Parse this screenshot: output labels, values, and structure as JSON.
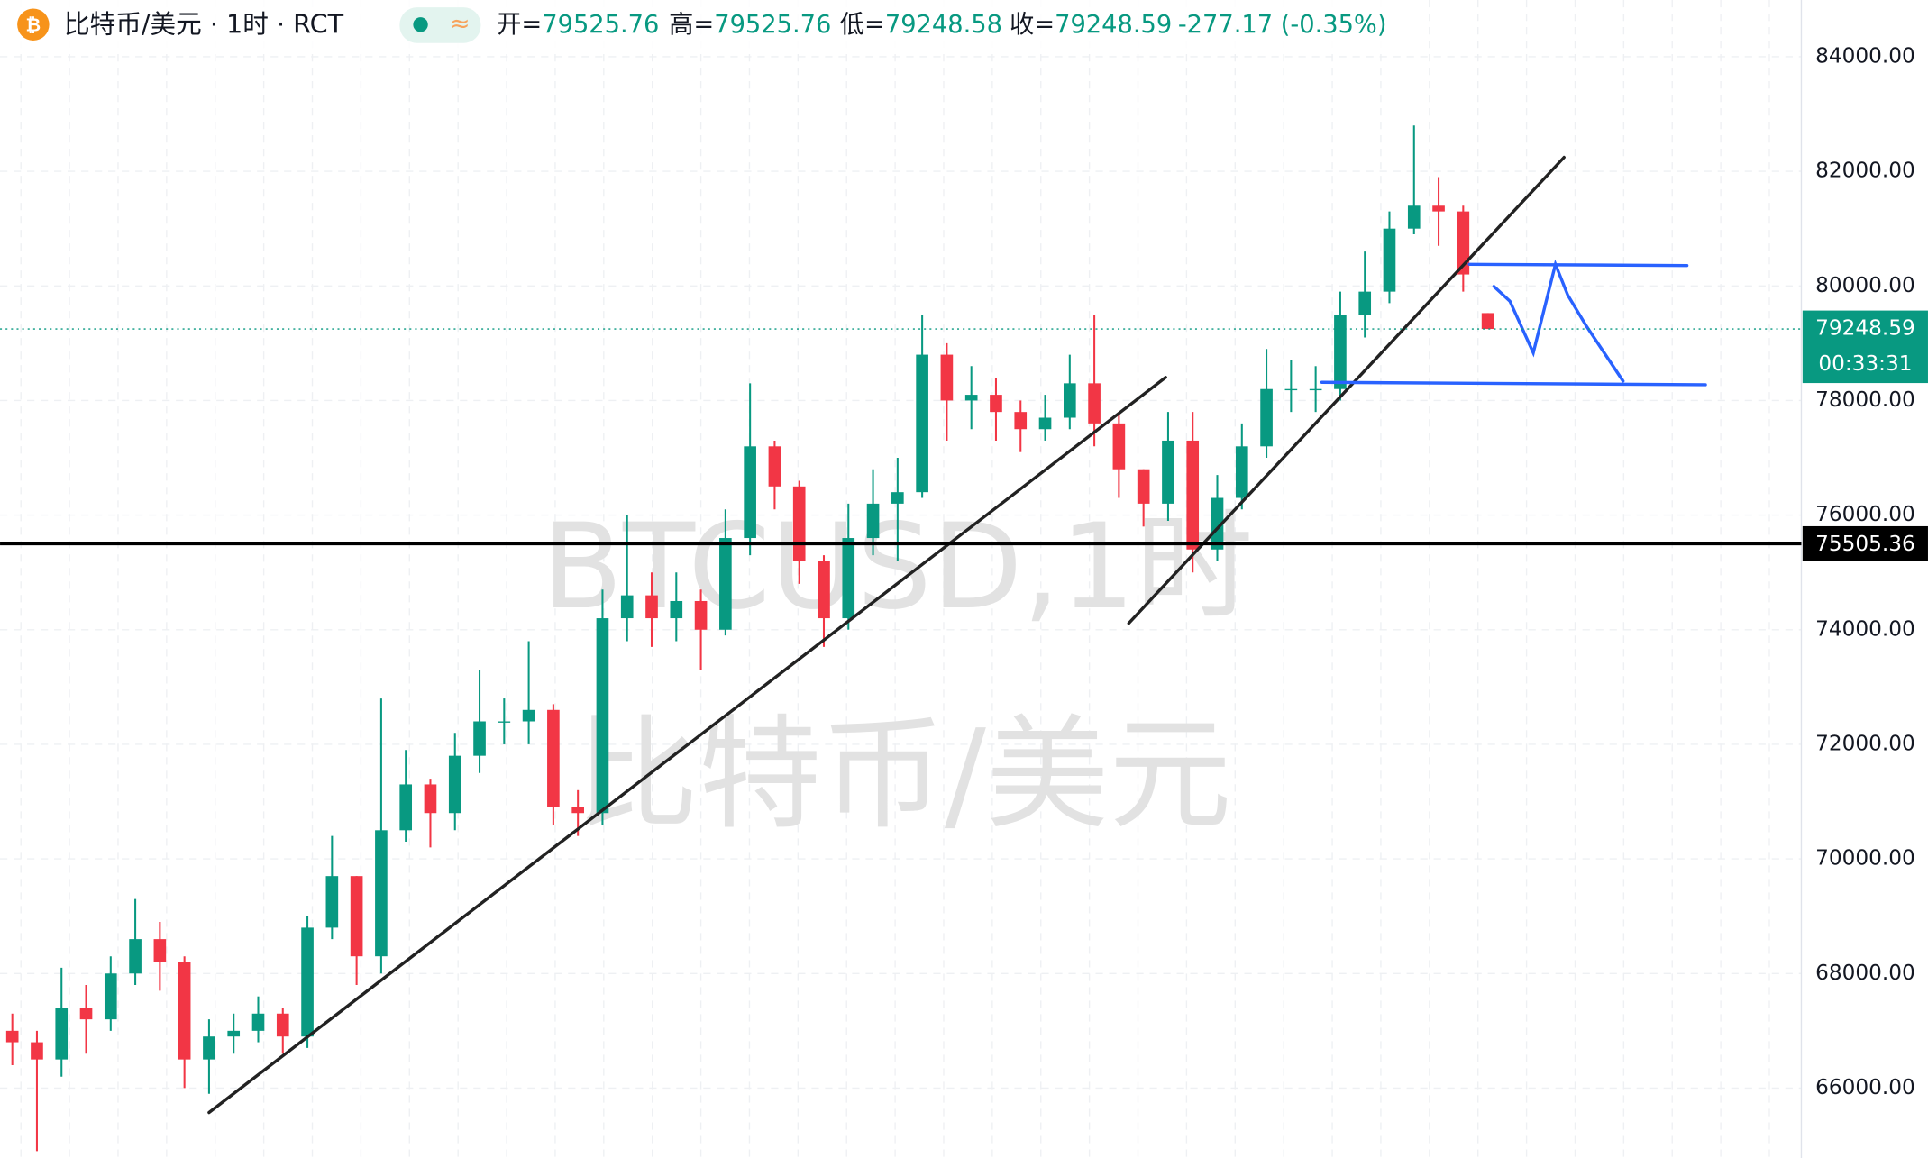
{
  "chart_data": {
    "type": "candlestick",
    "title": "比特币/美元 · 1时 · RCT",
    "ohlc": [
      {
        "label": "开=",
        "value": 79525.76
      },
      {
        "label": "高=",
        "value": 79525.76
      },
      {
        "label": "低=",
        "value": 79248.58
      },
      {
        "label": "收=",
        "value": 79248.59
      }
    ],
    "change": {
      "value": -277.17,
      "label": "-277.17 (-0.35%)"
    },
    "watermark": [
      "BTCUSD,1时",
      "比特币/美元"
    ],
    "up_color": "#089981",
    "down_color": "#f23645",
    "open": [
      67000,
      66800,
      66500,
      67400,
      67200,
      68000,
      68600,
      68200,
      66500,
      66900,
      67000,
      67300,
      66900,
      68800,
      69700,
      68300,
      70500,
      71300,
      70800,
      71800,
      72400,
      72400,
      72600,
      70900,
      70800,
      74200,
      74600,
      74200,
      74500,
      74000,
      75600,
      77200,
      76500,
      75200,
      74200,
      75600,
      76200,
      76400,
      78800,
      78000,
      78100,
      77800,
      77500,
      77700,
      78300,
      77600,
      76800,
      76200,
      77300,
      75400,
      76300,
      77200,
      78200,
      78200,
      78200,
      79500,
      79900,
      81000,
      81400,
      81300,
      79525.76
    ],
    "high": [
      67300,
      67000,
      68100,
      67800,
      68300,
      69300,
      68900,
      68300,
      67200,
      67300,
      67600,
      67400,
      69000,
      70400,
      69700,
      72800,
      71900,
      71400,
      72200,
      73300,
      72800,
      73800,
      72700,
      71200,
      74700,
      76000,
      75000,
      75000,
      74700,
      76100,
      78300,
      77300,
      76600,
      75300,
      76200,
      76800,
      77000,
      79500,
      79000,
      78600,
      78400,
      78000,
      78100,
      78800,
      79500,
      77800,
      76800,
      77800,
      77800,
      76700,
      77600,
      78900,
      78700,
      78600,
      79900,
      80600,
      81300,
      82800,
      81900,
      81400,
      79525.76
    ],
    "low": [
      66400,
      64900,
      66200,
      66600,
      67000,
      67800,
      67700,
      66000,
      65900,
      66600,
      66800,
      66600,
      66700,
      68600,
      67800,
      68000,
      70300,
      70200,
      70500,
      71500,
      72000,
      72000,
      70600,
      70400,
      70600,
      73800,
      73700,
      73800,
      73300,
      73900,
      75300,
      76100,
      74800,
      73700,
      74000,
      75300,
      75200,
      76300,
      77300,
      77500,
      77300,
      77100,
      77300,
      77500,
      77200,
      76300,
      75800,
      75900,
      75000,
      75200,
      76100,
      77000,
      77800,
      77800,
      78000,
      79100,
      79700,
      80900,
      80700,
      79900,
      79248.58
    ],
    "close": [
      66800,
      66500,
      67400,
      67200,
      68000,
      68600,
      68200,
      66500,
      66900,
      67000,
      67300,
      66900,
      68800,
      69700,
      68300,
      70500,
      71300,
      70800,
      71800,
      72400,
      72400,
      72600,
      70900,
      70800,
      74200,
      74600,
      74200,
      74500,
      74000,
      75600,
      77200,
      76500,
      75200,
      74200,
      75600,
      76200,
      76400,
      78800,
      78000,
      78100,
      77800,
      77500,
      77700,
      78300,
      77600,
      76800,
      76200,
      77300,
      75400,
      76300,
      77200,
      78200,
      78200,
      78200,
      79500,
      79900,
      81000,
      81400,
      81300,
      80200,
      79248.59
    ],
    "ylim": [
      64780,
      84990
    ],
    "yticks": [
      {
        "value": 66000,
        "label": "66000.00"
      },
      {
        "value": 68000,
        "label": "68000.00"
      },
      {
        "value": 70000,
        "label": "70000.00"
      },
      {
        "value": 72000,
        "label": "72000.00"
      },
      {
        "value": 74000,
        "label": "74000.00"
      },
      {
        "value": 76000,
        "label": "76000.00"
      },
      {
        "value": 78000,
        "label": "78000.00"
      },
      {
        "value": 80000,
        "label": "80000.00"
      },
      {
        "value": 82000,
        "label": "82000.00"
      },
      {
        "value": 84000,
        "label": "84000.00"
      }
    ],
    "grid": true,
    "last_price": 79248.59,
    "countdown": "00:33:31",
    "hline": 75505.36
  }
}
